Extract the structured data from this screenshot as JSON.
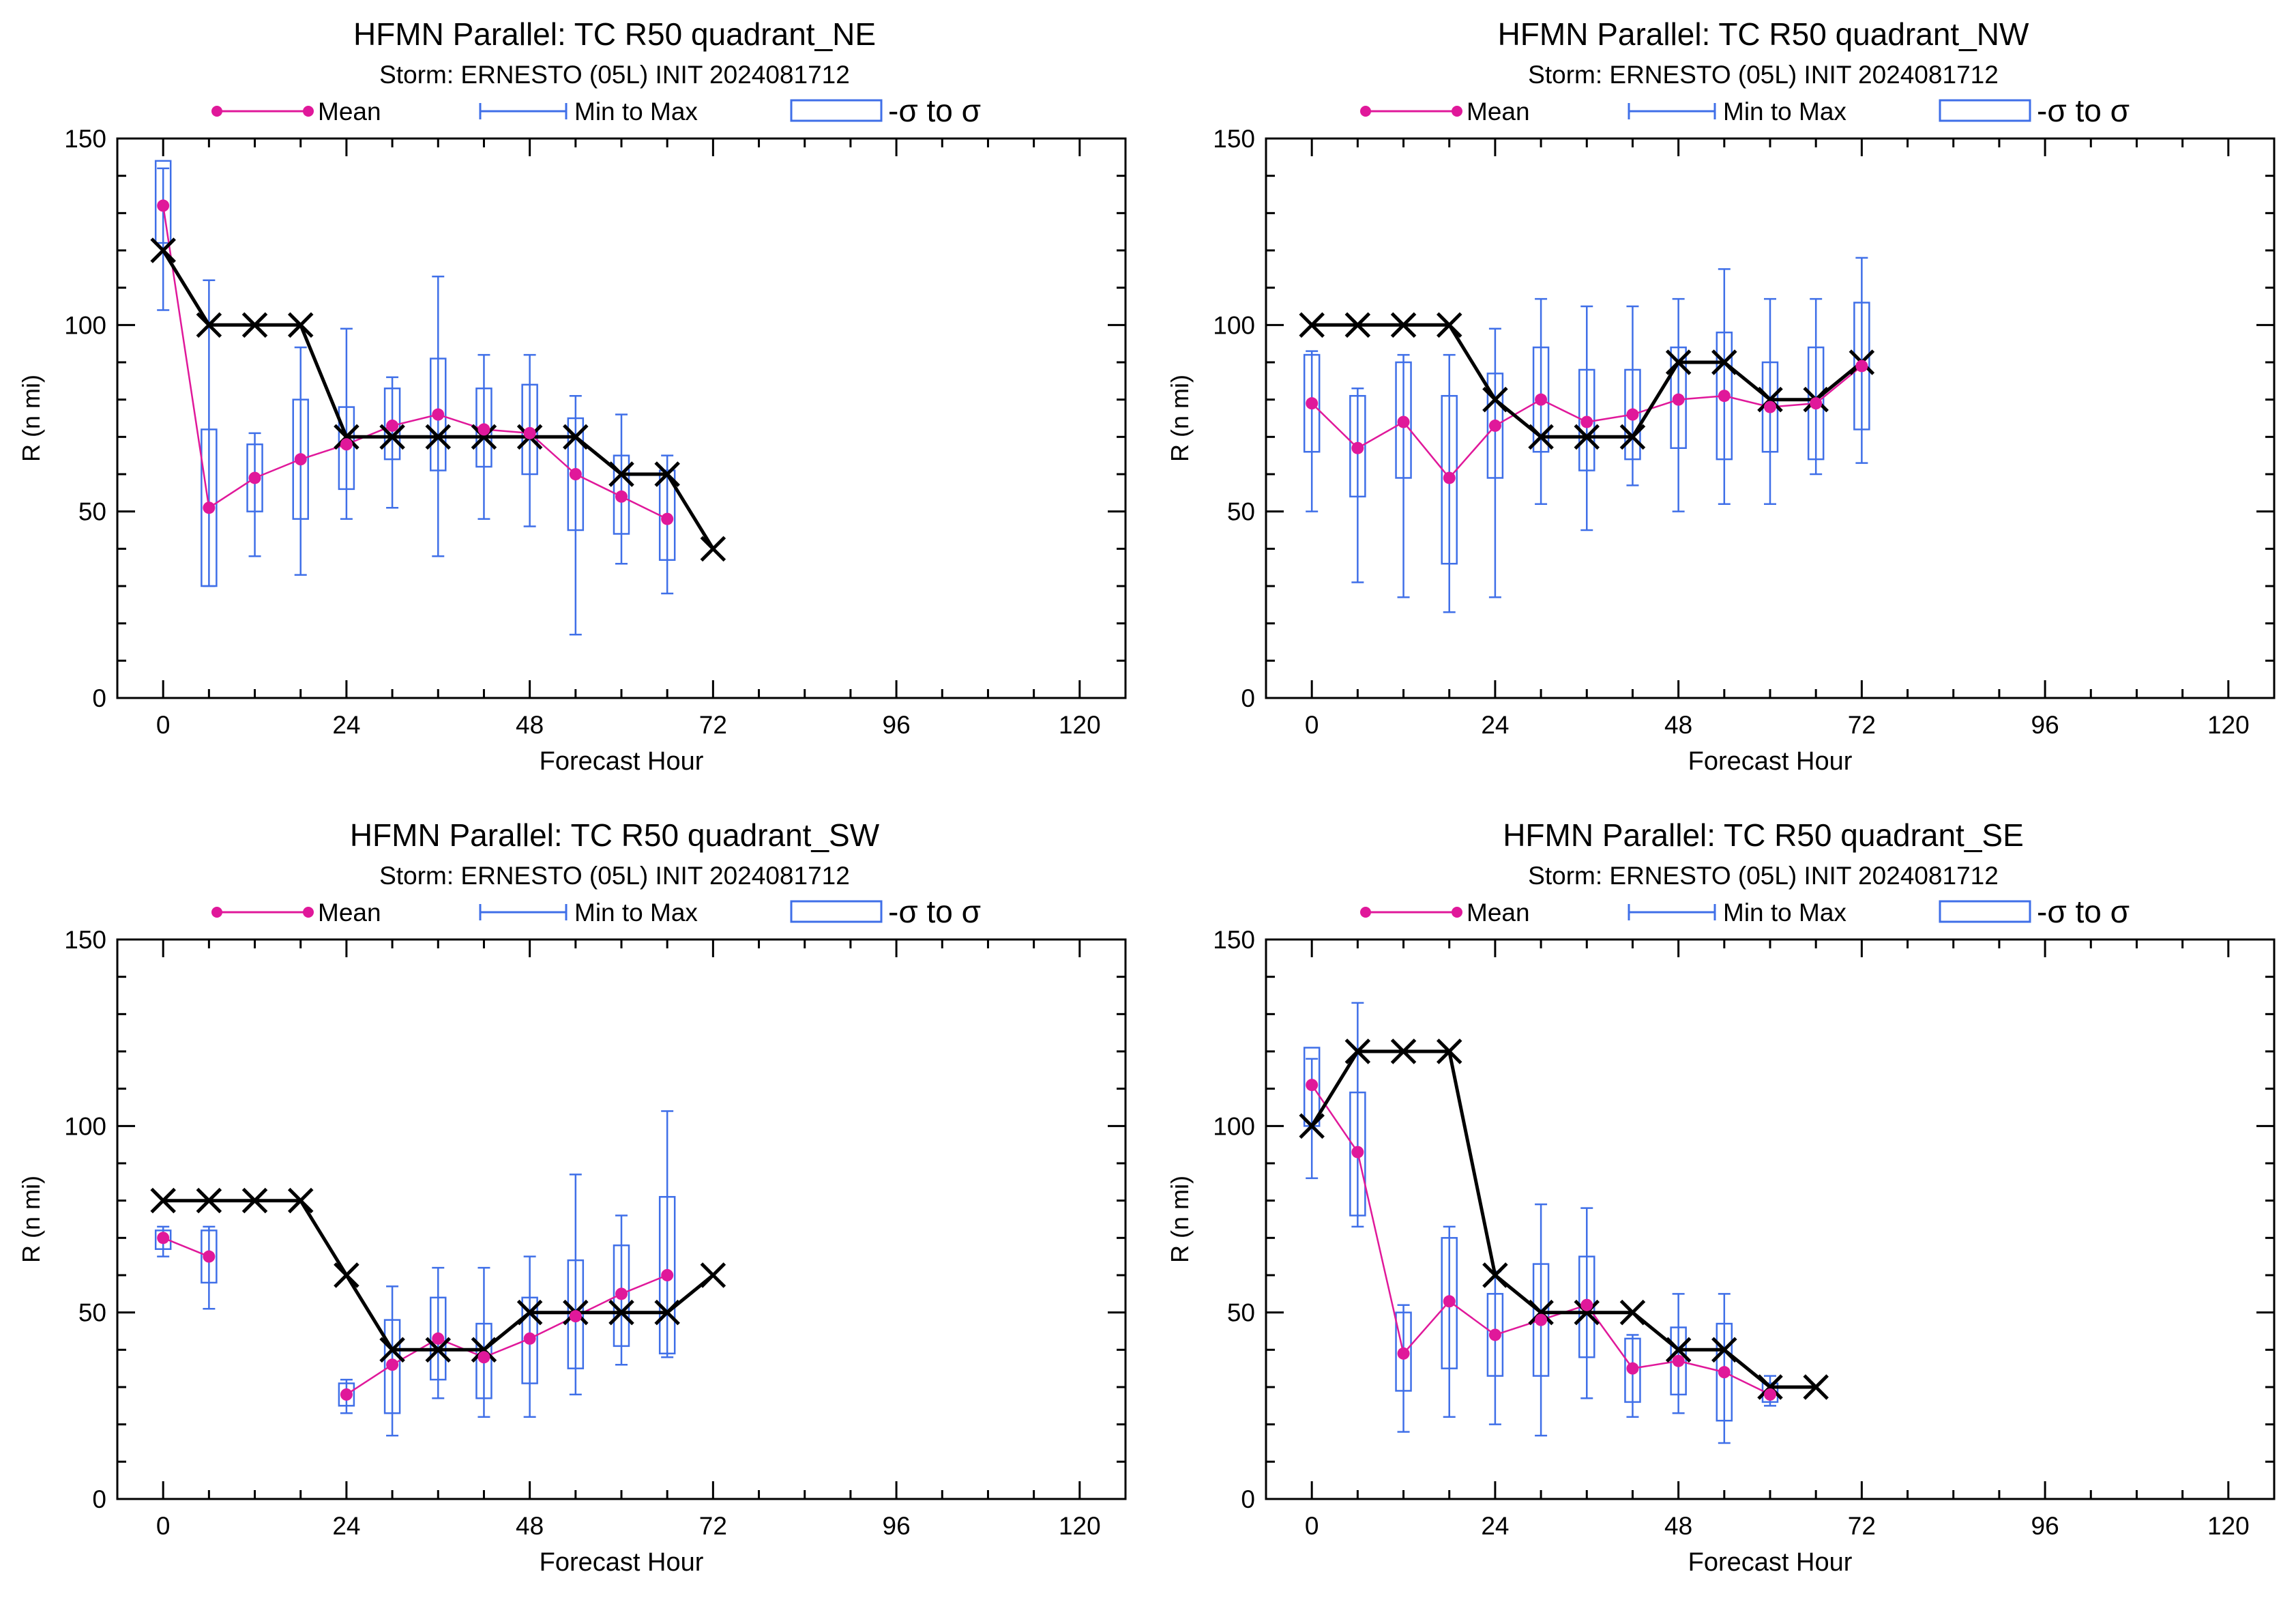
{
  "legend": {
    "mean_label": "Mean",
    "minmax_label": "Min to Max",
    "sigma_label": "-σ to σ"
  },
  "colors": {
    "mean": "#e0189a",
    "box": "#3f6fe8",
    "observed": "#000000",
    "axis": "#000000"
  },
  "chart_data": [
    {
      "type": "box",
      "title": "HFMN Parallel: TC  R50 quadrant_NE",
      "subtitle": "Storm: ERNESTO (05L) INIT 2024081712",
      "xlabel": "Forecast Hour",
      "ylabel": "R (n mi)",
      "xlim": [
        -6,
        126
      ],
      "ylim": [
        0,
        150
      ],
      "xticks": [
        0,
        24,
        48,
        72,
        96,
        120
      ],
      "yticks": [
        0,
        50,
        100,
        150
      ],
      "observed": [
        [
          0,
          120
        ],
        [
          6,
          100
        ],
        [
          12,
          100
        ],
        [
          18,
          100
        ],
        [
          24,
          70
        ],
        [
          30,
          70
        ],
        [
          36,
          70
        ],
        [
          42,
          70
        ],
        [
          48,
          70
        ],
        [
          54,
          70
        ],
        [
          60,
          60
        ],
        [
          66,
          60
        ],
        [
          72,
          40
        ]
      ],
      "mean": [
        [
          0,
          132
        ],
        [
          6,
          51
        ],
        [
          12,
          59
        ],
        [
          18,
          64
        ],
        [
          24,
          68
        ],
        [
          30,
          73
        ],
        [
          36,
          76
        ],
        [
          42,
          72
        ],
        [
          48,
          71
        ],
        [
          54,
          60
        ],
        [
          60,
          54
        ],
        [
          66,
          48
        ]
      ],
      "boxes": [
        {
          "x": 0,
          "min": 104,
          "max": 142,
          "lo": 122,
          "hi": 144
        },
        {
          "x": 6,
          "min": 30,
          "max": 112,
          "lo": 30,
          "hi": 72
        },
        {
          "x": 12,
          "min": 38,
          "max": 71,
          "lo": 50,
          "hi": 68
        },
        {
          "x": 18,
          "min": 33,
          "max": 94,
          "lo": 48,
          "hi": 80
        },
        {
          "x": 24,
          "min": 48,
          "max": 99,
          "lo": 56,
          "hi": 78
        },
        {
          "x": 30,
          "min": 51,
          "max": 86,
          "lo": 64,
          "hi": 83
        },
        {
          "x": 36,
          "min": 38,
          "max": 113,
          "lo": 61,
          "hi": 91
        },
        {
          "x": 42,
          "min": 48,
          "max": 92,
          "lo": 62,
          "hi": 83
        },
        {
          "x": 48,
          "min": 46,
          "max": 92,
          "lo": 60,
          "hi": 84
        },
        {
          "x": 54,
          "min": 17,
          "max": 81,
          "lo": 45,
          "hi": 75
        },
        {
          "x": 60,
          "min": 36,
          "max": 76,
          "lo": 44,
          "hi": 65
        },
        {
          "x": 66,
          "min": 28,
          "max": 65,
          "lo": 37,
          "hi": 61
        }
      ]
    },
    {
      "type": "box",
      "title": "HFMN Parallel: TC  R50 quadrant_NW",
      "subtitle": "Storm: ERNESTO (05L) INIT 2024081712",
      "xlabel": "Forecast Hour",
      "ylabel": "R (n mi)",
      "xlim": [
        -6,
        126
      ],
      "ylim": [
        0,
        150
      ],
      "xticks": [
        0,
        24,
        48,
        72,
        96,
        120
      ],
      "yticks": [
        0,
        50,
        100,
        150
      ],
      "observed": [
        [
          0,
          100
        ],
        [
          6,
          100
        ],
        [
          12,
          100
        ],
        [
          18,
          100
        ],
        [
          24,
          80
        ],
        [
          30,
          70
        ],
        [
          36,
          70
        ],
        [
          42,
          70
        ],
        [
          48,
          90
        ],
        [
          54,
          90
        ],
        [
          60,
          80
        ],
        [
          66,
          80
        ],
        [
          72,
          90
        ]
      ],
      "mean": [
        [
          0,
          79
        ],
        [
          6,
          67
        ],
        [
          12,
          74
        ],
        [
          18,
          59
        ],
        [
          24,
          73
        ],
        [
          30,
          80
        ],
        [
          36,
          74
        ],
        [
          42,
          76
        ],
        [
          48,
          80
        ],
        [
          54,
          81
        ],
        [
          60,
          78
        ],
        [
          66,
          79
        ],
        [
          72,
          89
        ]
      ],
      "boxes": [
        {
          "x": 0,
          "min": 50,
          "max": 93,
          "lo": 66,
          "hi": 92
        },
        {
          "x": 6,
          "min": 31,
          "max": 83,
          "lo": 54,
          "hi": 81
        },
        {
          "x": 12,
          "min": 27,
          "max": 92,
          "lo": 59,
          "hi": 90
        },
        {
          "x": 18,
          "min": 23,
          "max": 92,
          "lo": 36,
          "hi": 81
        },
        {
          "x": 24,
          "min": 27,
          "max": 99,
          "lo": 59,
          "hi": 87
        },
        {
          "x": 30,
          "min": 52,
          "max": 107,
          "lo": 66,
          "hi": 94
        },
        {
          "x": 36,
          "min": 45,
          "max": 105,
          "lo": 61,
          "hi": 88
        },
        {
          "x": 42,
          "min": 57,
          "max": 105,
          "lo": 64,
          "hi": 88
        },
        {
          "x": 48,
          "min": 50,
          "max": 107,
          "lo": 67,
          "hi": 94
        },
        {
          "x": 54,
          "min": 52,
          "max": 115,
          "lo": 64,
          "hi": 98
        },
        {
          "x": 60,
          "min": 52,
          "max": 107,
          "lo": 66,
          "hi": 90
        },
        {
          "x": 66,
          "min": 60,
          "max": 107,
          "lo": 64,
          "hi": 94
        },
        {
          "x": 72,
          "min": 63,
          "max": 118,
          "lo": 72,
          "hi": 106
        }
      ]
    },
    {
      "type": "box",
      "title": "HFMN Parallel: TC  R50 quadrant_SW",
      "subtitle": "Storm: ERNESTO (05L) INIT 2024081712",
      "xlabel": "Forecast Hour",
      "ylabel": "R (n mi)",
      "xlim": [
        -6,
        126
      ],
      "ylim": [
        0,
        150
      ],
      "xticks": [
        0,
        24,
        48,
        72,
        96,
        120
      ],
      "yticks": [
        0,
        50,
        100,
        150
      ],
      "observed": [
        [
          0,
          80
        ],
        [
          6,
          80
        ],
        [
          12,
          80
        ],
        [
          18,
          80
        ],
        [
          24,
          60
        ],
        [
          30,
          40
        ],
        [
          36,
          40
        ],
        [
          42,
          40
        ],
        [
          48,
          50
        ],
        [
          54,
          50
        ],
        [
          60,
          50
        ],
        [
          66,
          50
        ],
        [
          72,
          60
        ]
      ],
      "mean": [
        [
          0,
          70
        ],
        [
          6,
          65
        ],
        [
          24,
          28
        ],
        [
          30,
          36
        ],
        [
          36,
          43
        ],
        [
          42,
          38
        ],
        [
          48,
          43
        ],
        [
          54,
          49
        ],
        [
          60,
          55
        ],
        [
          66,
          60
        ]
      ],
      "boxes": [
        {
          "x": 0,
          "min": 65,
          "max": 73,
          "lo": 67,
          "hi": 72
        },
        {
          "x": 6,
          "min": 51,
          "max": 73,
          "lo": 58,
          "hi": 72
        },
        {
          "x": 24,
          "min": 23,
          "max": 32,
          "lo": 25,
          "hi": 31
        },
        {
          "x": 30,
          "min": 17,
          "max": 57,
          "lo": 23,
          "hi": 48
        },
        {
          "x": 36,
          "min": 27,
          "max": 62,
          "lo": 32,
          "hi": 54
        },
        {
          "x": 42,
          "min": 22,
          "max": 62,
          "lo": 27,
          "hi": 47
        },
        {
          "x": 48,
          "min": 22,
          "max": 65,
          "lo": 31,
          "hi": 54
        },
        {
          "x": 54,
          "min": 28,
          "max": 87,
          "lo": 35,
          "hi": 64
        },
        {
          "x": 60,
          "min": 36,
          "max": 76,
          "lo": 41,
          "hi": 68
        },
        {
          "x": 66,
          "min": 38,
          "max": 104,
          "lo": 39,
          "hi": 81
        }
      ]
    },
    {
      "type": "box",
      "title": "HFMN Parallel: TC  R50 quadrant_SE",
      "subtitle": "Storm: ERNESTO (05L) INIT 2024081712",
      "xlabel": "Forecast Hour",
      "ylabel": "R (n mi)",
      "xlim": [
        -6,
        126
      ],
      "ylim": [
        0,
        150
      ],
      "xticks": [
        0,
        24,
        48,
        72,
        96,
        120
      ],
      "yticks": [
        0,
        50,
        100,
        150
      ],
      "observed": [
        [
          0,
          100
        ],
        [
          6,
          120
        ],
        [
          12,
          120
        ],
        [
          18,
          120
        ],
        [
          24,
          60
        ],
        [
          30,
          50
        ],
        [
          36,
          50
        ],
        [
          42,
          50
        ],
        [
          48,
          40
        ],
        [
          54,
          40
        ],
        [
          60,
          30
        ],
        [
          66,
          30
        ]
      ],
      "mean": [
        [
          0,
          111
        ],
        [
          6,
          93
        ],
        [
          12,
          39
        ],
        [
          18,
          53
        ],
        [
          24,
          44
        ],
        [
          30,
          48
        ],
        [
          36,
          52
        ],
        [
          42,
          35
        ],
        [
          48,
          37
        ],
        [
          54,
          34
        ],
        [
          60,
          28
        ]
      ],
      "boxes": [
        {
          "x": 0,
          "min": 86,
          "max": 118,
          "lo": 100,
          "hi": 121
        },
        {
          "x": 6,
          "min": 73,
          "max": 133,
          "lo": 76,
          "hi": 109
        },
        {
          "x": 12,
          "min": 18,
          "max": 52,
          "lo": 29,
          "hi": 50
        },
        {
          "x": 18,
          "min": 22,
          "max": 73,
          "lo": 35,
          "hi": 70
        },
        {
          "x": 24,
          "min": 20,
          "max": 61,
          "lo": 33,
          "hi": 55
        },
        {
          "x": 30,
          "min": 17,
          "max": 79,
          "lo": 33,
          "hi": 63
        },
        {
          "x": 36,
          "min": 27,
          "max": 78,
          "lo": 38,
          "hi": 65
        },
        {
          "x": 42,
          "min": 22,
          "max": 44,
          "lo": 26,
          "hi": 43
        },
        {
          "x": 48,
          "min": 23,
          "max": 55,
          "lo": 28,
          "hi": 46
        },
        {
          "x": 54,
          "min": 15,
          "max": 55,
          "lo": 21,
          "hi": 47
        },
        {
          "x": 60,
          "min": 25,
          "max": 33,
          "lo": 26,
          "hi": 31
        }
      ]
    }
  ]
}
